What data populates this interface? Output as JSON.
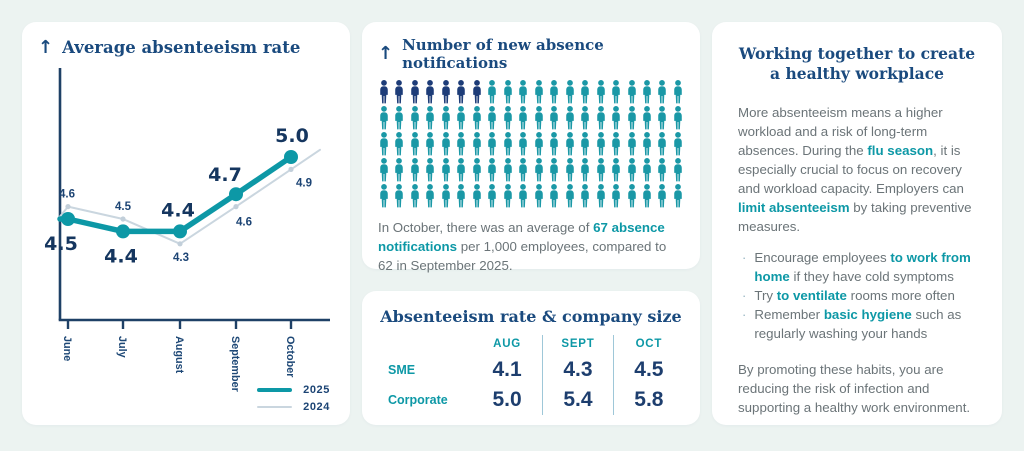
{
  "colors": {
    "background": "#ecf3f1",
    "card": "#ffffff",
    "navy_heading": "#1a4a7e",
    "teal": "#0d98a6",
    "axis_navy": "#1e4066",
    "data_label_navy": "#15365f",
    "small_label_navy": "#1c4474",
    "body_gray": "#6b7478",
    "line_2024": "#cad6df",
    "icon_navy": "#1d3c78",
    "icon_teal": "#1a98a6",
    "table_divider": "#9ec7d8"
  },
  "chart_card": {
    "arrow_icon": "↑",
    "title": "Average absenteeism rate"
  },
  "notifications_card": {
    "arrow_icon": "↑",
    "title": "Number of new absence notifications",
    "caption_segments": [
      {
        "text": "In October, there was an average of "
      },
      {
        "text": "67 absence notifications",
        "highlight": true
      },
      {
        "text": " per 1,000 employees, compared to 62 in September 2025."
      }
    ]
  },
  "table_card": {
    "title": "Absenteeism rate & company size"
  },
  "info_card": {
    "title_line1": "Working together to create",
    "title_line2": "a healthy workplace",
    "paragraph1_segments": [
      {
        "text": "More absenteeism means a higher workload and a risk of long-term absences. During the "
      },
      {
        "text": "flu season",
        "highlight": true
      },
      {
        "text": ", it is especially crucial to focus on recovery and workload capacity. Employers can "
      },
      {
        "text": "limit absenteeism",
        "highlight": true
      },
      {
        "text": " by taking preventive measures."
      }
    ],
    "bullets": [
      [
        {
          "text": "Encourage employees "
        },
        {
          "text": "to work from home",
          "highlight": true
        },
        {
          "text": " if they have cold symptoms"
        }
      ],
      [
        {
          "text": "Try "
        },
        {
          "text": "to ventilate",
          "highlight": true
        },
        {
          "text": " rooms more often"
        }
      ],
      [
        {
          "text": "Remember "
        },
        {
          "text": "basic hygiene",
          "highlight": true
        },
        {
          "text": " such as regularly washing your hands"
        }
      ]
    ],
    "paragraph2": "By promoting these habits, you are reducing the risk of infection and supporting a healthy work environment."
  },
  "chart_data": [
    {
      "type": "line",
      "title": "Average absenteeism rate",
      "categories": [
        "June",
        "July",
        "August",
        "September",
        "October"
      ],
      "series": [
        {
          "name": "2025",
          "values": [
            4.5,
            4.4,
            4.4,
            4.7,
            5.0
          ],
          "color": "#0d98a6",
          "style": "thick"
        },
        {
          "name": "2024",
          "values": [
            4.6,
            4.5,
            4.3,
            4.6,
            4.9
          ],
          "color": "#cad6df",
          "style": "thin"
        }
      ],
      "xlabel": "",
      "ylabel": "",
      "y_tick_labels_shown": false,
      "grid": false,
      "legend_position": "bottom-right"
    },
    {
      "type": "pictogram",
      "title": "Number of new absence notifications",
      "rows": 5,
      "icons_per_row": 20,
      "total_icons": 100,
      "highlighted_icons": 7,
      "highlight_color": "#1d3c78",
      "base_color": "#1a98a6",
      "october_value": 67,
      "september_value": 62,
      "unit": "absence notifications per 1,000 employees"
    },
    {
      "type": "table",
      "title": "Absenteeism rate & company size",
      "columns": [
        "AUG",
        "SEPT",
        "OCT"
      ],
      "rows": [
        {
          "label": "SME",
          "values": [
            4.1,
            4.3,
            4.5
          ]
        },
        {
          "label": "Corporate",
          "values": [
            5.0,
            5.4,
            5.8
          ]
        }
      ]
    }
  ]
}
